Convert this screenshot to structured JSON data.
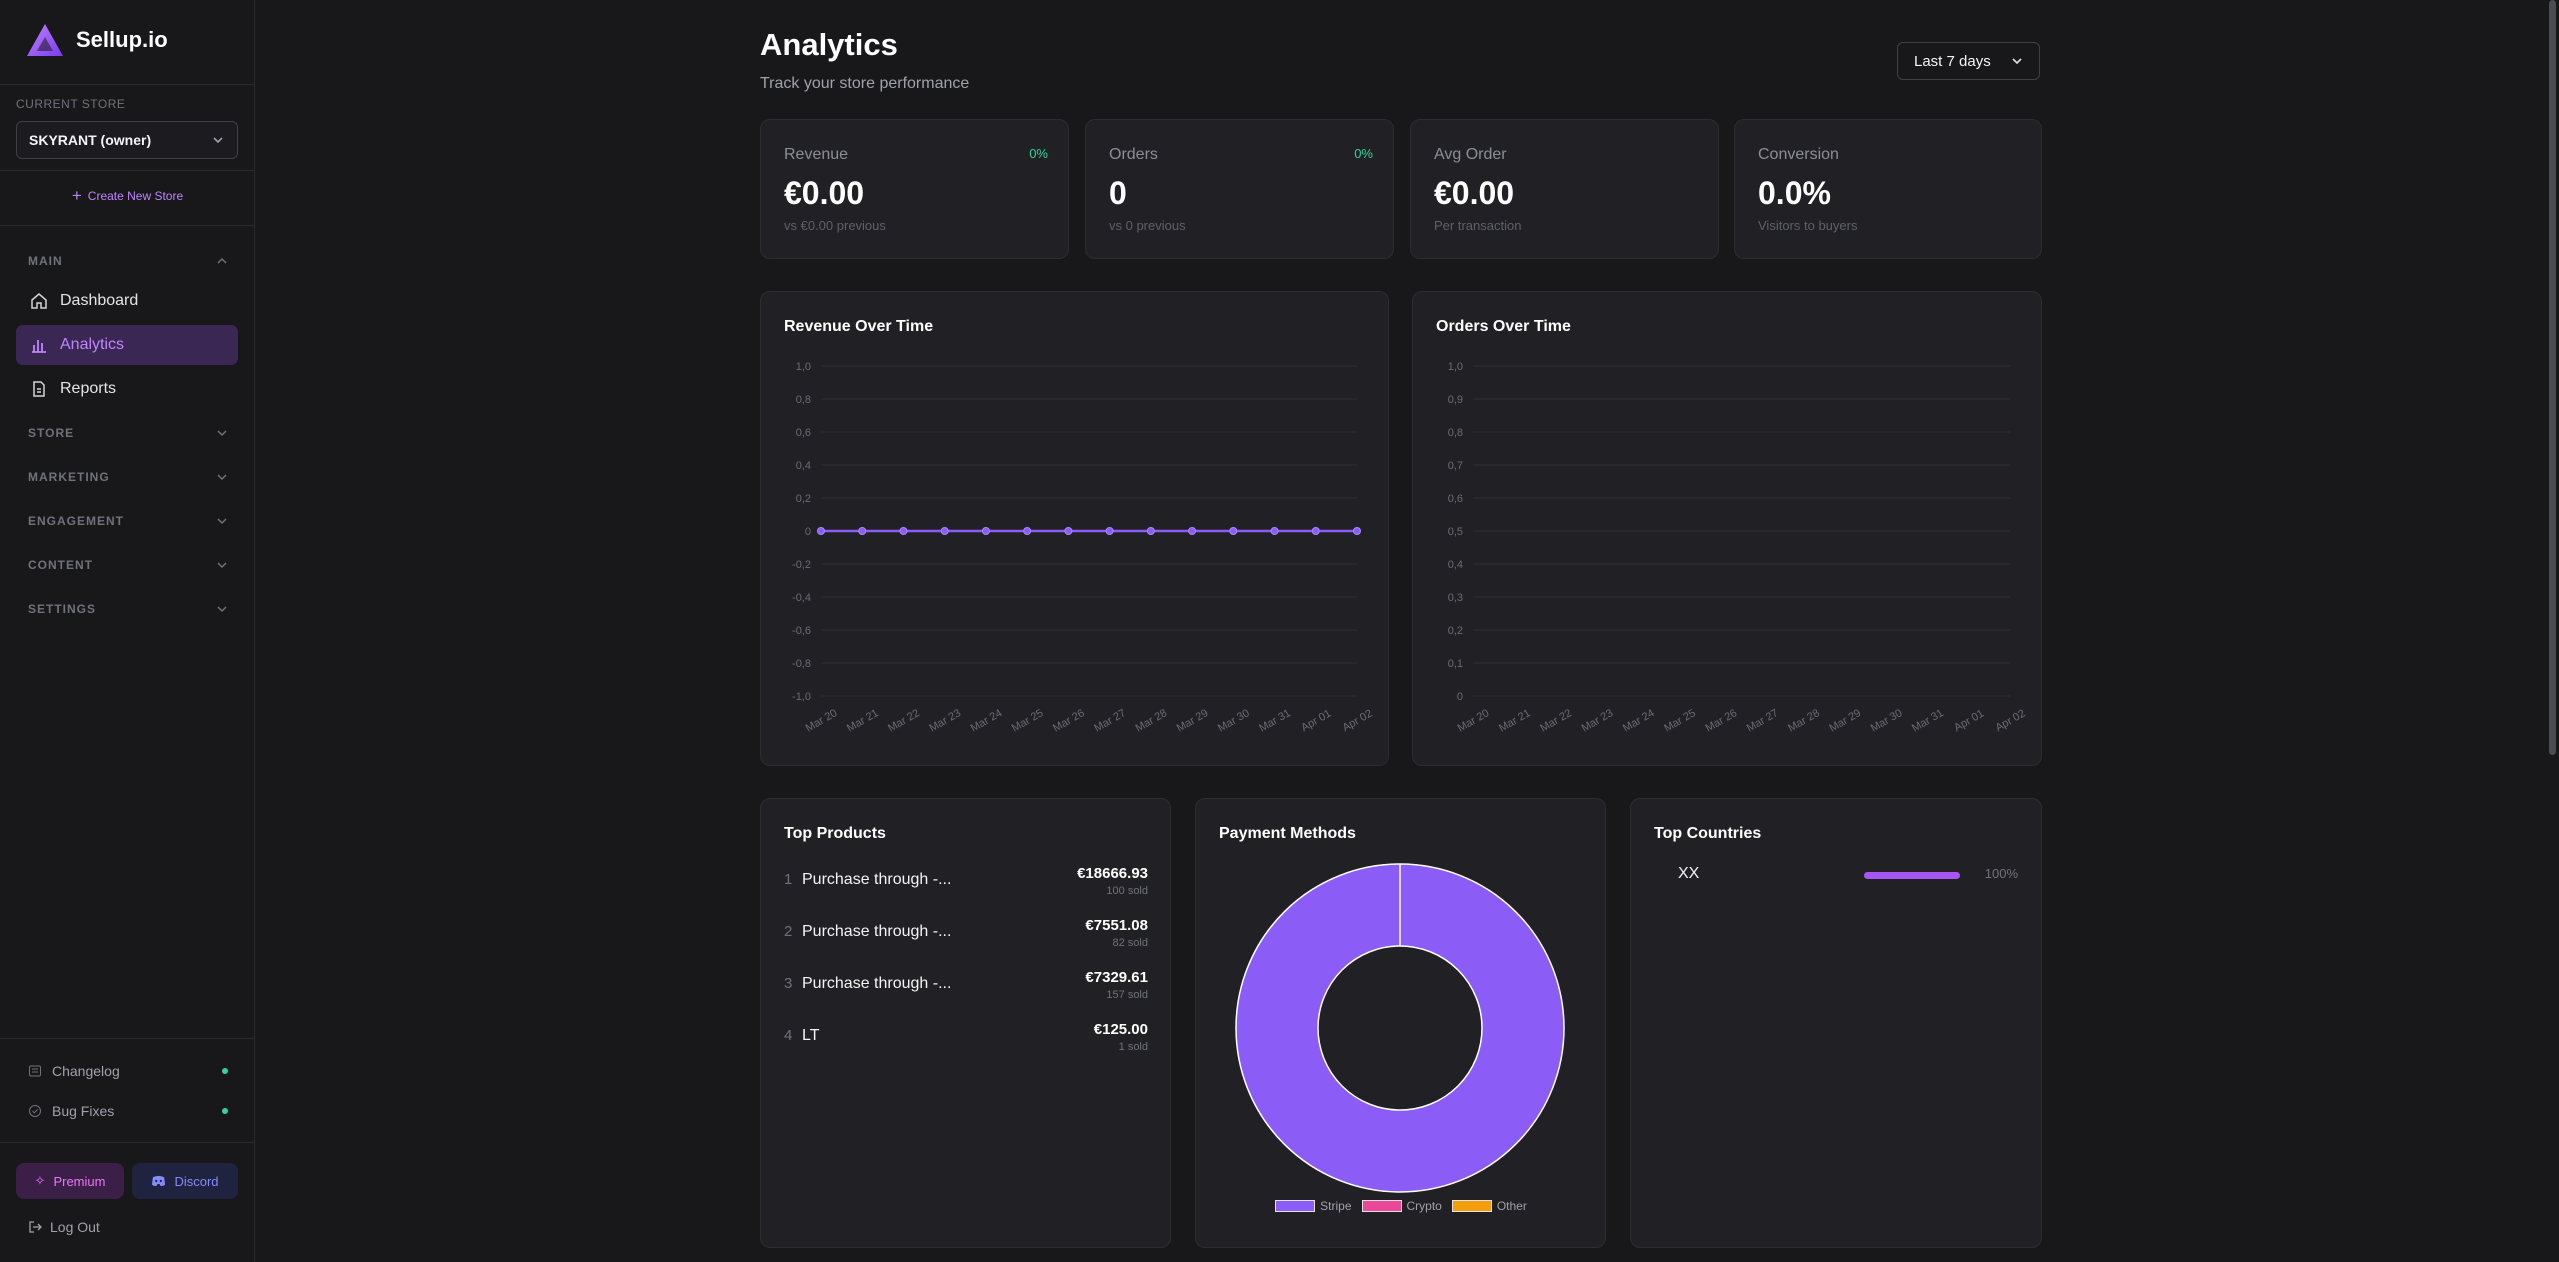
{
  "app": {
    "name": "Sellup.io"
  },
  "sidebar": {
    "current_store_label": "CURRENT STORE",
    "current_store": "SKYRANT (owner)",
    "create_store": "Create New Store",
    "sections": {
      "main": "MAIN",
      "store": "STORE",
      "marketing": "MARKETING",
      "engagement": "ENGAGEMENT",
      "content": "CONTENT",
      "settings": "SETTINGS"
    },
    "items": [
      {
        "label": "Dashboard",
        "icon": "home-icon"
      },
      {
        "label": "Analytics",
        "icon": "bar-chart-icon",
        "active": true
      },
      {
        "label": "Reports",
        "icon": "file-icon"
      }
    ],
    "footer": {
      "changelog": "Changelog",
      "bug_fixes": "Bug Fixes",
      "premium": "Premium",
      "discord": "Discord",
      "logout": "Log Out"
    }
  },
  "header": {
    "title": "Analytics",
    "subtitle": "Track your store performance",
    "range": "Last 7 days"
  },
  "stats": [
    {
      "label": "Revenue",
      "value": "€0.00",
      "sub": "vs €0.00 previous",
      "change": "0%"
    },
    {
      "label": "Orders",
      "value": "0",
      "sub": "vs 0 previous",
      "change": "0%"
    },
    {
      "label": "Avg Order",
      "value": "€0.00",
      "sub": "Per transaction",
      "change": ""
    },
    {
      "label": "Conversion",
      "value": "0.0%",
      "sub": "Visitors to buyers",
      "change": ""
    }
  ],
  "chart_data": [
    {
      "type": "line",
      "title": "Revenue Over Time",
      "x": [
        "Mar 20",
        "Mar 21",
        "Mar 22",
        "Mar 23",
        "Mar 24",
        "Mar 25",
        "Mar 26",
        "Mar 27",
        "Mar 28",
        "Mar 29",
        "Mar 30",
        "Mar 31",
        "Apr 01",
        "Apr 02"
      ],
      "series": [
        {
          "values": [
            0,
            0,
            0,
            0,
            0,
            0,
            0,
            0,
            0,
            0,
            0,
            0,
            0,
            0
          ]
        }
      ],
      "y_ticks": [
        "1,0",
        "0,8",
        "0,6",
        "0,4",
        "0,2",
        "0",
        "-0,2",
        "-0,4",
        "-0,6",
        "-0,8",
        "-1,0"
      ],
      "ylim": [
        -1,
        1
      ],
      "grid": true,
      "color": "#8b5cf6"
    },
    {
      "type": "line",
      "title": "Orders Over Time",
      "x": [
        "Mar 20",
        "Mar 21",
        "Mar 22",
        "Mar 23",
        "Mar 24",
        "Mar 25",
        "Mar 26",
        "Mar 27",
        "Mar 28",
        "Mar 29",
        "Mar 30",
        "Mar 31",
        "Apr 01",
        "Apr 02"
      ],
      "series": [],
      "y_ticks": [
        "1,0",
        "0,9",
        "0,8",
        "0,7",
        "0,6",
        "0,5",
        "0,4",
        "0,3",
        "0,2",
        "0,1",
        "0"
      ],
      "ylim": [
        0,
        1
      ],
      "grid": true
    },
    {
      "type": "pie",
      "title": "Payment Methods",
      "categories": [
        "Stripe",
        "Crypto",
        "Other"
      ],
      "values": [
        100,
        0,
        0
      ],
      "colors": [
        "#8b5cf6",
        "#ec4899",
        "#f59e0b"
      ]
    }
  ],
  "top_products": {
    "title": "Top Products",
    "items": [
      {
        "rank": "1",
        "name": "Purchase through -...",
        "price": "€18666.93",
        "sold": "100 sold"
      },
      {
        "rank": "2",
        "name": "Purchase through -...",
        "price": "€7551.08",
        "sold": "82 sold"
      },
      {
        "rank": "3",
        "name": "Purchase through -...",
        "price": "€7329.61",
        "sold": "157 sold"
      },
      {
        "rank": "4",
        "name": "LT",
        "price": "€125.00",
        "sold": "1 sold"
      }
    ]
  },
  "top_countries": {
    "title": "Top Countries",
    "items": [
      {
        "name": "XX",
        "percent": "100%",
        "fraction": 1.0
      }
    ]
  }
}
